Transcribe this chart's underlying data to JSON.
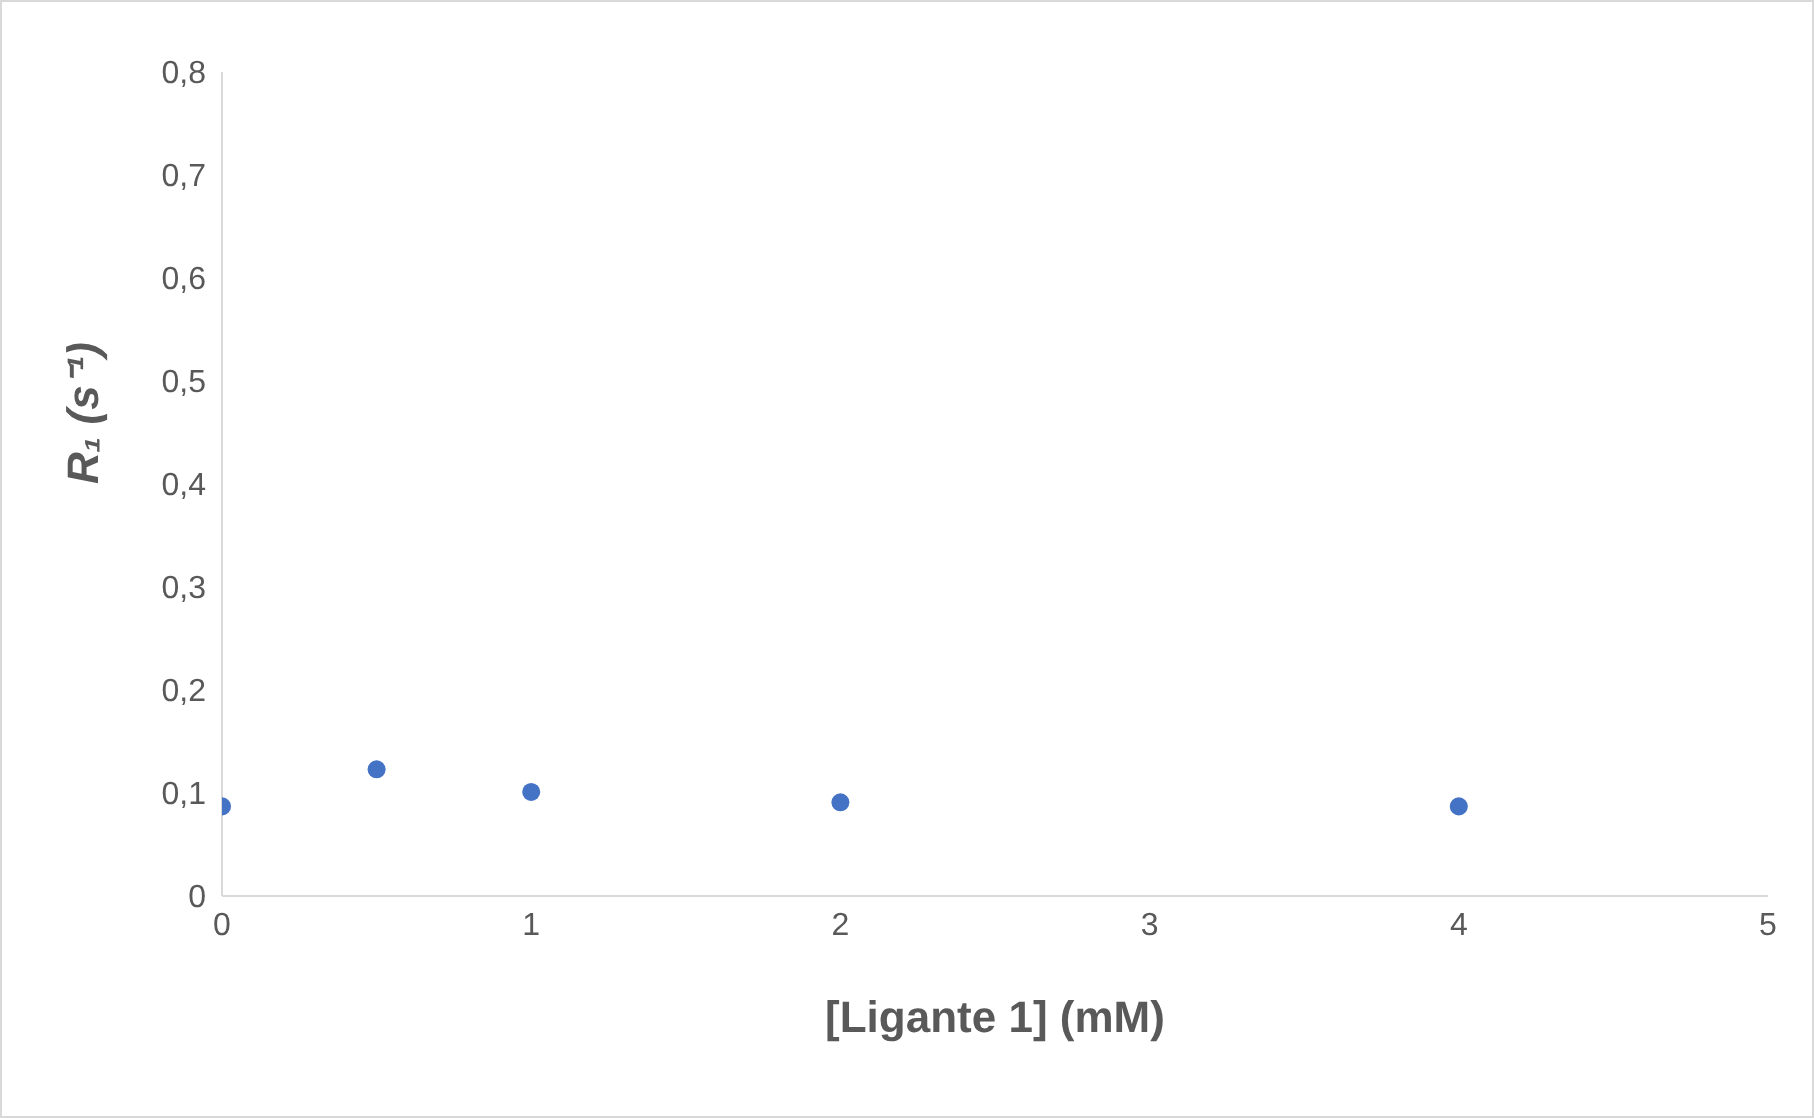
{
  "chart_data": {
    "type": "scatter",
    "xlabel": "[Ligante 1] (mM)",
    "ylabel": "R₁ (s⁻¹)",
    "x": [
      0,
      0.5,
      1,
      2,
      4
    ],
    "series": [
      {
        "color": "#4472c4",
        "values": [
          0.087,
          0.123,
          0.101,
          0.091,
          0.087
        ]
      }
    ],
    "xlim": [
      0,
      5
    ],
    "xticks": [
      0,
      1,
      2,
      3,
      4,
      5
    ],
    "ylim": [
      0,
      0.8
    ],
    "yticks": [
      0,
      {
        "value": 0.1,
        "label": "0,1"
      },
      {
        "value": 0.2,
        "label": "0,2"
      },
      {
        "value": 0.3,
        "label": "0,3"
      },
      {
        "value": 0.4,
        "label": "0,4"
      },
      {
        "value": 0.5,
        "label": "0,5"
      },
      {
        "value": 0.6,
        "label": "0,6"
      },
      {
        "value": 0.7,
        "label": "0,7"
      },
      {
        "value": 0.8,
        "label": "0,8"
      }
    ],
    "grid": false,
    "legend": false,
    "marker": "circle"
  }
}
